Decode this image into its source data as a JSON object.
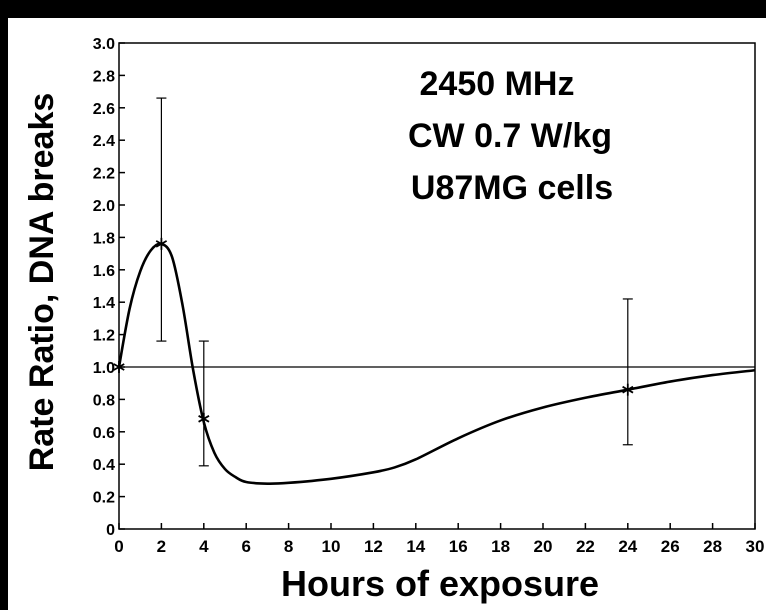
{
  "chart_data": {
    "type": "line",
    "title": "",
    "annotations": [
      "2450 MHz",
      "CW 0.7 W/kg",
      "U87MG cells"
    ],
    "xlabel": "Hours of  exposure",
    "ylabel": "Rate Ratio,  DNA breaks",
    "xlim": [
      0,
      30
    ],
    "ylim": [
      0,
      3.0
    ],
    "x_ticks": [
      0,
      2,
      4,
      6,
      8,
      10,
      12,
      14,
      16,
      18,
      20,
      22,
      24,
      26,
      28,
      30
    ],
    "y_ticks": [
      0,
      0.2,
      0.4,
      0.6,
      0.8,
      1.0,
      1.2,
      1.4,
      1.6,
      1.8,
      2.0,
      2.2,
      2.4,
      2.6,
      2.8,
      3.0
    ],
    "y_tick_labels": [
      "0",
      "0.2",
      "0.4",
      "0.6",
      "0.8",
      "1.0",
      "1.2",
      "1.4",
      "1.6",
      "1.8",
      "2.0",
      "2.2",
      "2.4",
      "2.6",
      "2.8",
      "3.0"
    ],
    "reference_line": 1.0,
    "grid": false,
    "points": [
      {
        "x": 0,
        "y": 1.0
      },
      {
        "x": 2,
        "y": 1.76,
        "err_low": 1.16,
        "err_high": 2.66
      },
      {
        "x": 4,
        "y": 0.68,
        "err_low": 0.39,
        "err_high": 1.16
      },
      {
        "x": 24,
        "y": 0.86,
        "err_low": 0.52,
        "err_high": 1.42
      }
    ],
    "fitted_curve": [
      [
        0,
        1.0
      ],
      [
        0.5,
        1.36
      ],
      [
        1,
        1.59
      ],
      [
        1.5,
        1.72
      ],
      [
        2,
        1.76
      ],
      [
        2.5,
        1.68
      ],
      [
        3,
        1.38
      ],
      [
        3.5,
        0.98
      ],
      [
        4,
        0.66
      ],
      [
        4.5,
        0.47
      ],
      [
        5,
        0.37
      ],
      [
        5.5,
        0.32
      ],
      [
        6,
        0.29
      ],
      [
        7,
        0.28
      ],
      [
        8,
        0.285
      ],
      [
        10,
        0.31
      ],
      [
        12,
        0.35
      ],
      [
        13,
        0.38
      ],
      [
        14,
        0.43
      ],
      [
        16,
        0.56
      ],
      [
        18,
        0.67
      ],
      [
        20,
        0.75
      ],
      [
        22,
        0.81
      ],
      [
        24,
        0.86
      ],
      [
        26,
        0.91
      ],
      [
        28,
        0.95
      ],
      [
        30,
        0.98
      ]
    ]
  }
}
